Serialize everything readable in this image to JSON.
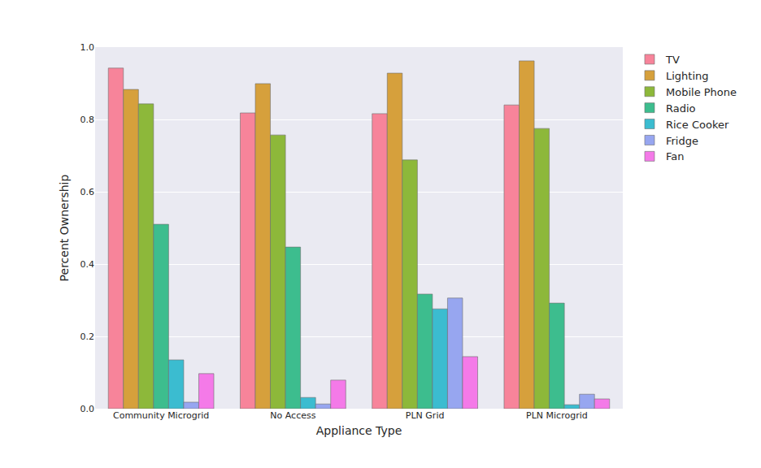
{
  "chart_data": {
    "type": "bar",
    "x_label": "Appliance Type",
    "y_label": "Percent Ownership",
    "categories": [
      "Community Microgrid",
      "No Access",
      "PLN Grid",
      "PLN Microgrid"
    ],
    "series": [
      {
        "name": "TV",
        "color": "#f7849a",
        "values": [
          0.942,
          0.818,
          0.816,
          0.84
        ]
      },
      {
        "name": "Lighting",
        "color": "#d6a03c",
        "values": [
          0.883,
          0.899,
          0.928,
          0.962
        ]
      },
      {
        "name": "Mobile Phone",
        "color": "#8db83a",
        "values": [
          0.843,
          0.757,
          0.688,
          0.775
        ]
      },
      {
        "name": "Radio",
        "color": "#3dbd8e",
        "values": [
          0.51,
          0.447,
          0.317,
          0.292
        ]
      },
      {
        "name": "Rice Cooker",
        "color": "#3bbcd0",
        "values": [
          0.135,
          0.031,
          0.276,
          0.011
        ]
      },
      {
        "name": "Fridge",
        "color": "#97a6f0",
        "values": [
          0.018,
          0.013,
          0.306,
          0.04
        ]
      },
      {
        "name": "Fan",
        "color": "#f47ae8",
        "values": [
          0.097,
          0.079,
          0.144,
          0.027
        ]
      }
    ],
    "ylim": [
      0,
      1
    ],
    "yticks": [
      {
        "value": 0,
        "label": "0.0"
      },
      0.2,
      0.4,
      0.6,
      0.8,
      {
        "value": 1,
        "label": "1.0"
      }
    ],
    "grid": true,
    "legend": "upper right"
  }
}
